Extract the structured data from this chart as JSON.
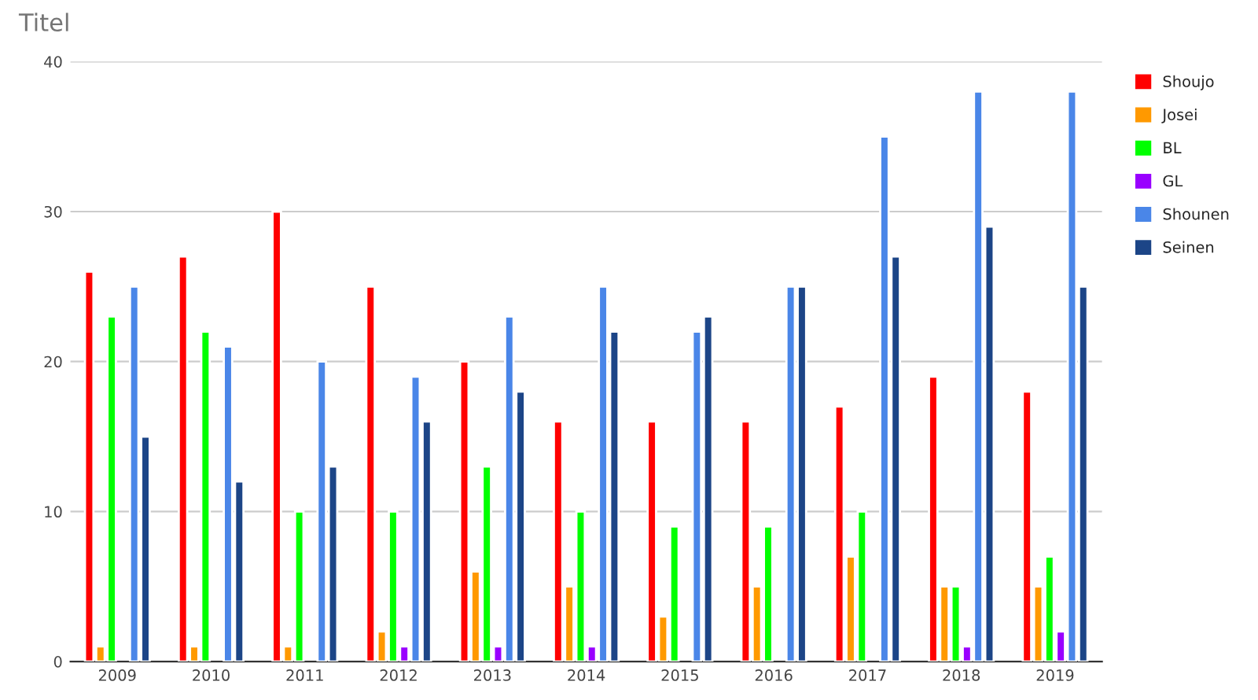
{
  "chart_data": {
    "type": "bar",
    "title": "Titel",
    "categories": [
      "2009",
      "2010",
      "2011",
      "2012",
      "2013",
      "2014",
      "2015",
      "2016",
      "2017",
      "2018",
      "2019"
    ],
    "series": [
      {
        "name": "Shoujo",
        "color": "#ff0000",
        "values": [
          26,
          27,
          30,
          25,
          20,
          16,
          16,
          16,
          17,
          19,
          18
        ]
      },
      {
        "name": "Josei",
        "color": "#ff9900",
        "values": [
          1,
          1,
          1,
          2,
          6,
          5,
          3,
          5,
          7,
          5,
          5
        ]
      },
      {
        "name": "BL",
        "color": "#00ff00",
        "values": [
          23,
          22,
          10,
          10,
          13,
          10,
          9,
          9,
          10,
          5,
          7
        ]
      },
      {
        "name": "GL",
        "color": "#9900ff",
        "values": [
          null,
          null,
          null,
          1,
          1,
          1,
          null,
          null,
          null,
          1,
          2
        ]
      },
      {
        "name": "Shounen",
        "color": "#4a86e8",
        "values": [
          25,
          21,
          20,
          19,
          23,
          25,
          22,
          25,
          35,
          38,
          38
        ]
      },
      {
        "name": "Seinen",
        "color": "#1c4587",
        "values": [
          15,
          12,
          13,
          16,
          18,
          22,
          23,
          25,
          27,
          29,
          25
        ]
      }
    ],
    "ylim": [
      0,
      40
    ],
    "yticks": [
      0,
      10,
      20,
      30,
      40
    ],
    "grid": "y",
    "legend": "top right"
  }
}
